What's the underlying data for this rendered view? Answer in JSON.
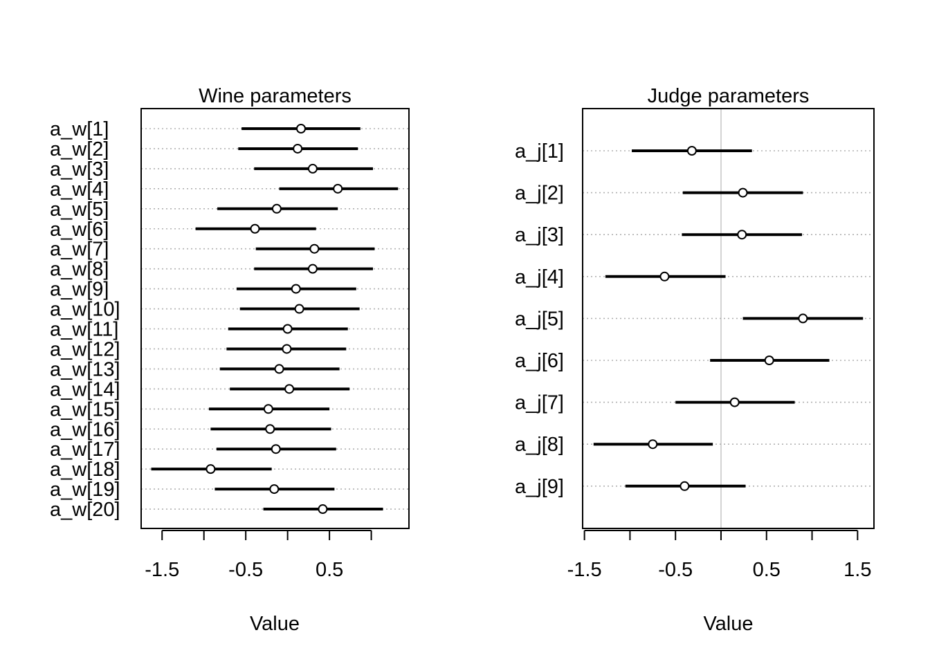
{
  "chart_data": [
    {
      "type": "dot-interval",
      "title": "Wine parameters",
      "xlabel": "Value",
      "ylabel": "",
      "xlim": [
        -1.75,
        1.45
      ],
      "xticks": [
        -1.5,
        -1,
        -0.5,
        0,
        0.5,
        1
      ],
      "xtick_labels": [
        "-1.5",
        "",
        "-0.5",
        "",
        "0.5",
        ""
      ],
      "zero_line": false,
      "grid": "dotted horizontal",
      "params": [
        "a_w[1]",
        "a_w[2]",
        "a_w[3]",
        "a_w[4]",
        "a_w[5]",
        "a_w[6]",
        "a_w[7]",
        "a_w[8]",
        "a_w[9]",
        "a_w[10]",
        "a_w[11]",
        "a_w[12]",
        "a_w[13]",
        "a_w[14]",
        "a_w[15]",
        "a_w[16]",
        "a_w[17]",
        "a_w[18]",
        "a_w[19]",
        "a_w[20]"
      ],
      "mean": [
        0.16,
        0.12,
        0.3,
        0.6,
        -0.13,
        -0.39,
        0.32,
        0.3,
        0.1,
        0.14,
        0.0,
        -0.01,
        -0.1,
        0.02,
        -0.23,
        -0.21,
        -0.14,
        -0.92,
        -0.16,
        0.42
      ],
      "lower": [
        -0.55,
        -0.59,
        -0.4,
        -0.1,
        -0.84,
        -1.1,
        -0.38,
        -0.4,
        -0.61,
        -0.57,
        -0.71,
        -0.73,
        -0.81,
        -0.69,
        -0.94,
        -0.92,
        -0.85,
        -1.63,
        -0.87,
        -0.29
      ],
      "upper": [
        0.87,
        0.84,
        1.02,
        1.32,
        0.6,
        0.34,
        1.04,
        1.02,
        0.82,
        0.86,
        0.72,
        0.7,
        0.62,
        0.74,
        0.5,
        0.52,
        0.58,
        -0.19,
        0.56,
        1.14
      ]
    },
    {
      "type": "dot-interval",
      "title": "Judge parameters",
      "xlabel": "Value",
      "ylabel": "",
      "xlim": [
        -1.52,
        1.68
      ],
      "xticks": [
        -1.5,
        -1,
        -0.5,
        0,
        0.5,
        1,
        1.5
      ],
      "xtick_labels": [
        "-1.5",
        "",
        "-0.5",
        "",
        "0.5",
        "",
        "1.5"
      ],
      "zero_line": true,
      "grid": "dotted horizontal",
      "params": [
        "a_j[1]",
        "a_j[2]",
        "a_j[3]",
        "a_j[4]",
        "a_j[5]",
        "a_j[6]",
        "a_j[7]",
        "a_j[8]",
        "a_j[9]"
      ],
      "mean": [
        -0.32,
        0.24,
        0.23,
        -0.62,
        0.9,
        0.53,
        0.15,
        -0.75,
        -0.4
      ],
      "lower": [
        -0.98,
        -0.42,
        -0.43,
        -1.27,
        0.24,
        -0.12,
        -0.5,
        -1.4,
        -1.05
      ],
      "upper": [
        0.34,
        0.9,
        0.89,
        0.05,
        1.56,
        1.19,
        0.81,
        -0.09,
        0.27
      ]
    }
  ]
}
